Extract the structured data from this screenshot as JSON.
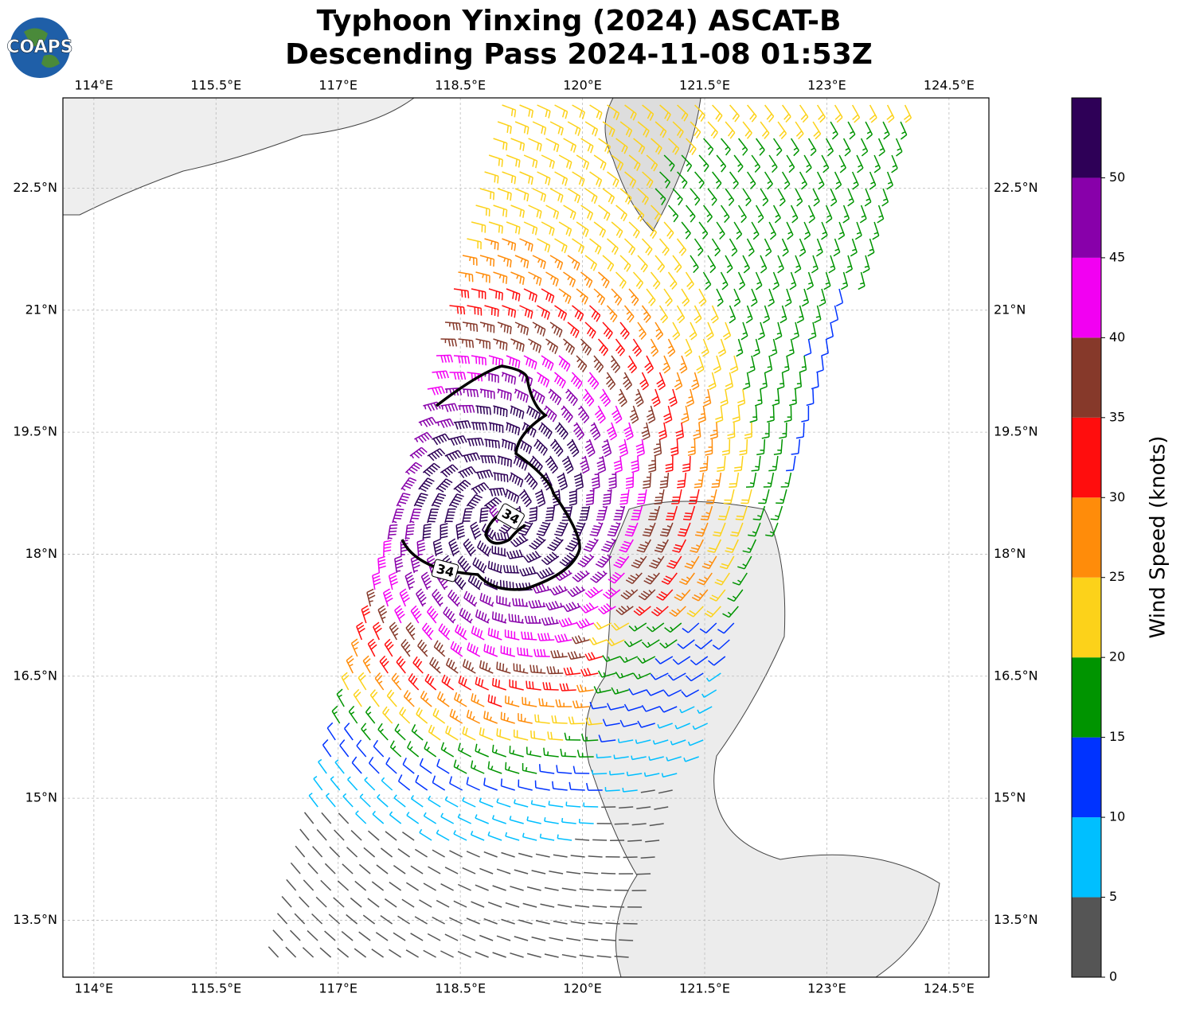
{
  "chart_data": {
    "type": "wind-barb-map",
    "logo": "COAPS",
    "title": [
      "Typhoon Yinxing (2024) ASCAT-B",
      "Descending Pass 2024-11-08 01:53Z"
    ],
    "xlim": [
      113.62,
      124.99
    ],
    "ylim": [
      12.8,
      23.61
    ],
    "xticks": [
      {
        "value": 114,
        "label": "114°E"
      },
      {
        "value": 115.5,
        "label": "115.5°E"
      },
      {
        "value": 117,
        "label": "117°E"
      },
      {
        "value": 118.5,
        "label": "118.5°E"
      },
      {
        "value": 120,
        "label": "120°E"
      },
      {
        "value": 121.5,
        "label": "121.5°E"
      },
      {
        "value": 123,
        "label": "123°E"
      },
      {
        "value": 124.5,
        "label": "124.5°E"
      }
    ],
    "yticks": [
      {
        "value": 13.5,
        "label": "13.5°N"
      },
      {
        "value": 15,
        "label": "15°N"
      },
      {
        "value": 16.5,
        "label": "16.5°N"
      },
      {
        "value": 18,
        "label": "18°N"
      },
      {
        "value": 19.5,
        "label": "19.5°N"
      },
      {
        "value": 21,
        "label": "21°N"
      },
      {
        "value": 22.5,
        "label": "22.5°N"
      }
    ],
    "grid": true,
    "contour_labels": [
      "34",
      "34"
    ],
    "colorbar": {
      "label": "Wind Speed (knots)",
      "ylim": [
        0,
        55
      ],
      "yticks": [
        0,
        5,
        10,
        15,
        20,
        25,
        30,
        35,
        40,
        45,
        50
      ],
      "bounds": [
        0,
        5,
        10,
        15,
        20,
        25,
        30,
        35,
        40,
        45,
        50,
        55
      ],
      "colors": [
        "#555555",
        "#00bfff",
        "#0033ff",
        "#009400",
        "#fcd21a",
        "#ff8c0a",
        "#ff0d0d",
        "#86392a",
        "#f200f2",
        "#8800aa",
        "#2e0057"
      ]
    }
  }
}
